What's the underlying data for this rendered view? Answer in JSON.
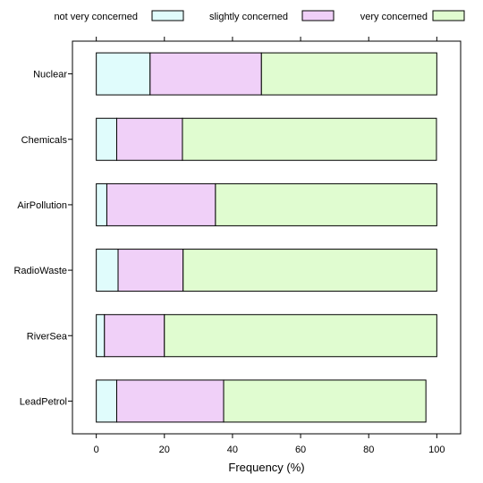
{
  "chart_data": {
    "type": "bar",
    "orientation": "horizontal",
    "stacked": true,
    "title": "",
    "xlabel": "Frequency (%)",
    "ylabel": "",
    "xlim": [
      -7,
      107
    ],
    "x_ticks": [
      0,
      20,
      40,
      60,
      80,
      100
    ],
    "grid": false,
    "legend_position": "top",
    "categories": [
      "Nuclear",
      "Chemicals",
      "AirPollution",
      "RadioWaste",
      "RiverSea",
      "LeadPetrol"
    ],
    "series": [
      {
        "name": "not very concerned",
        "color": "#e0fcfc",
        "values": [
          15.8,
          6.0,
          3.1,
          6.4,
          2.4,
          6.0
        ]
      },
      {
        "name": "slightly concerned",
        "color": "#f0d0f8",
        "values": [
          32.7,
          19.3,
          31.9,
          19.1,
          17.6,
          31.4
        ]
      },
      {
        "name": "very concerned",
        "color": "#e0fcd0",
        "values": [
          51.5,
          74.6,
          65.0,
          74.5,
          80.0,
          59.4
        ]
      }
    ]
  }
}
